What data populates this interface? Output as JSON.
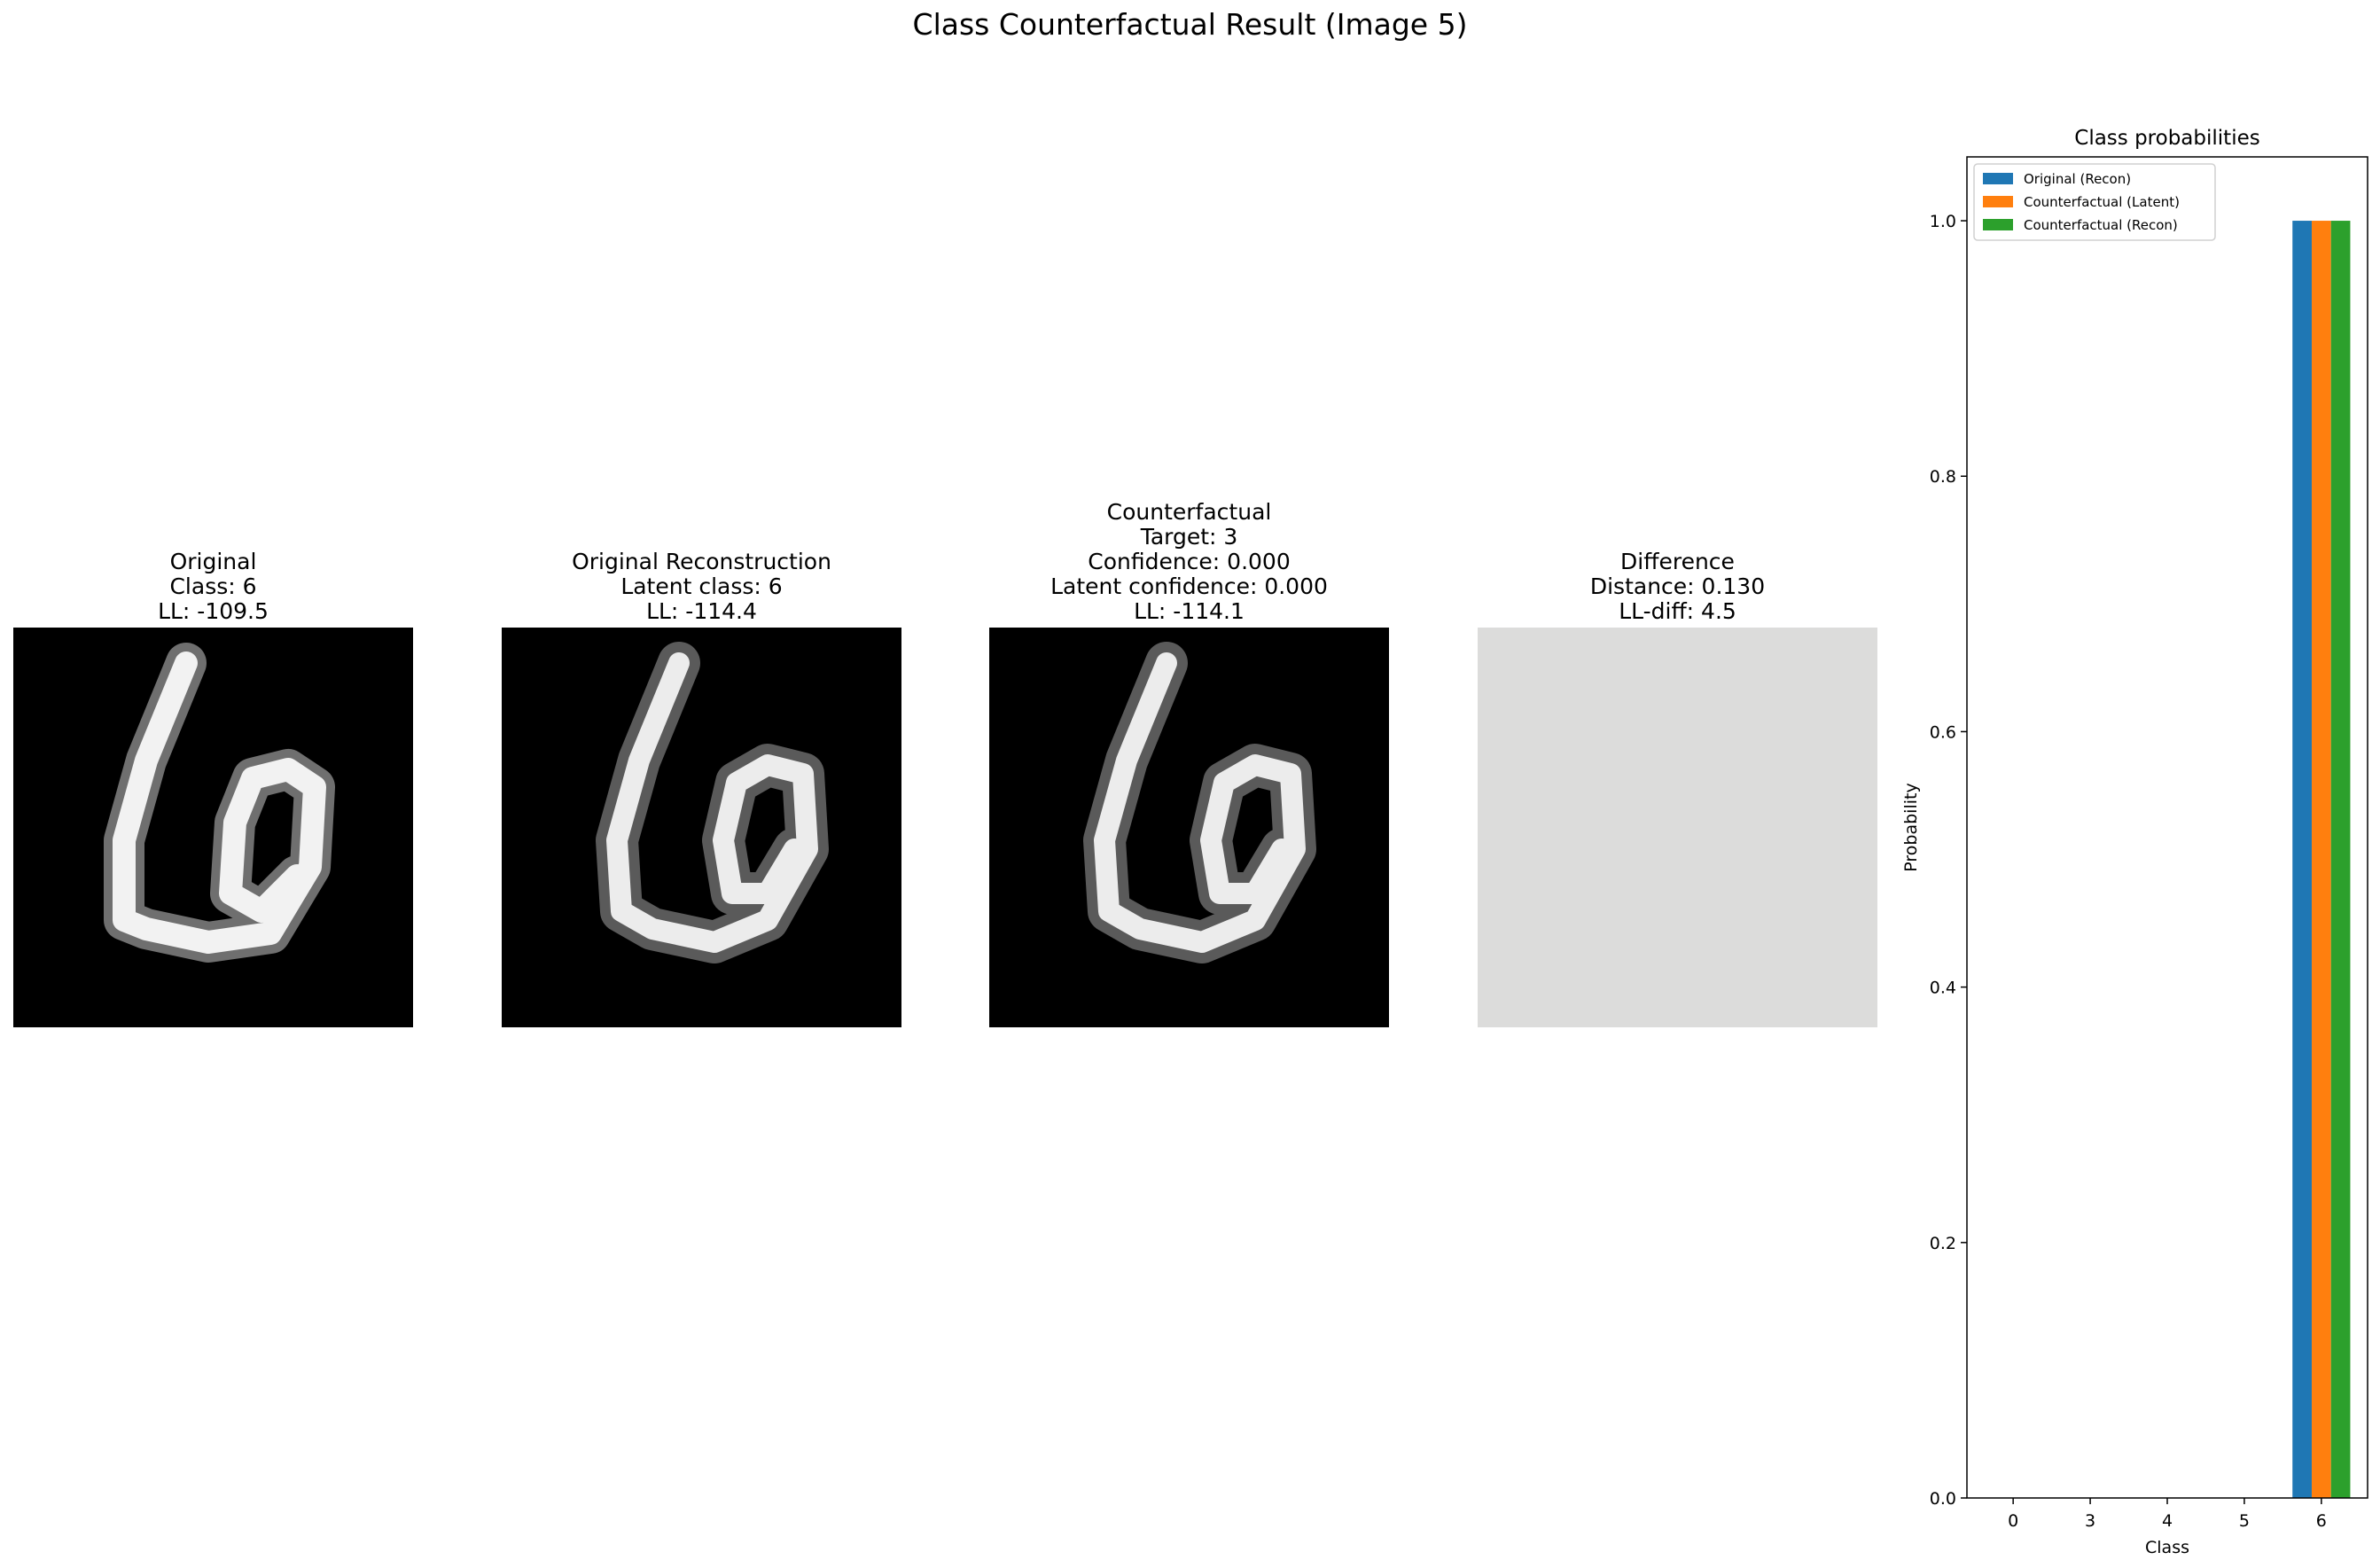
{
  "suptitle": "Class Counterfactual Result (Image 5)",
  "panels": {
    "original": {
      "lines": [
        "Original",
        "Class: 6",
        "LL: -109.5"
      ]
    },
    "reconstruction": {
      "lines": [
        "Original Reconstruction",
        "Latent class: 6",
        "LL: -114.4"
      ]
    },
    "counterfactual": {
      "lines": [
        "Counterfactual",
        "Target: 3",
        "Confidence: 0.000",
        "Latent confidence: 0.000",
        "LL: -114.1"
      ]
    },
    "difference": {
      "lines": [
        "Difference",
        "Distance: 0.130",
        "LL-diff: 4.5"
      ]
    }
  },
  "chart_data": {
    "type": "bar",
    "title": "Class probabilities",
    "xlabel": "Class",
    "ylabel": "Probability",
    "categories": [
      "0",
      "3",
      "4",
      "5",
      "6"
    ],
    "ylim": [
      0,
      1.05
    ],
    "yticks": [
      "0.0",
      "0.2",
      "0.4",
      "0.6",
      "0.8",
      "1.0"
    ],
    "legend_position": "top-left",
    "series": [
      {
        "name": "Original (Recon)",
        "color": "#1f77b4",
        "values": [
          0,
          0,
          0,
          0,
          1.0
        ]
      },
      {
        "name": "Counterfactual (Latent)",
        "color": "#ff7f0e",
        "values": [
          0,
          0,
          0,
          0,
          1.0
        ]
      },
      {
        "name": "Counterfactual (Recon)",
        "color": "#2ca02c",
        "values": [
          0,
          0,
          0,
          0,
          1.0
        ]
      }
    ]
  }
}
